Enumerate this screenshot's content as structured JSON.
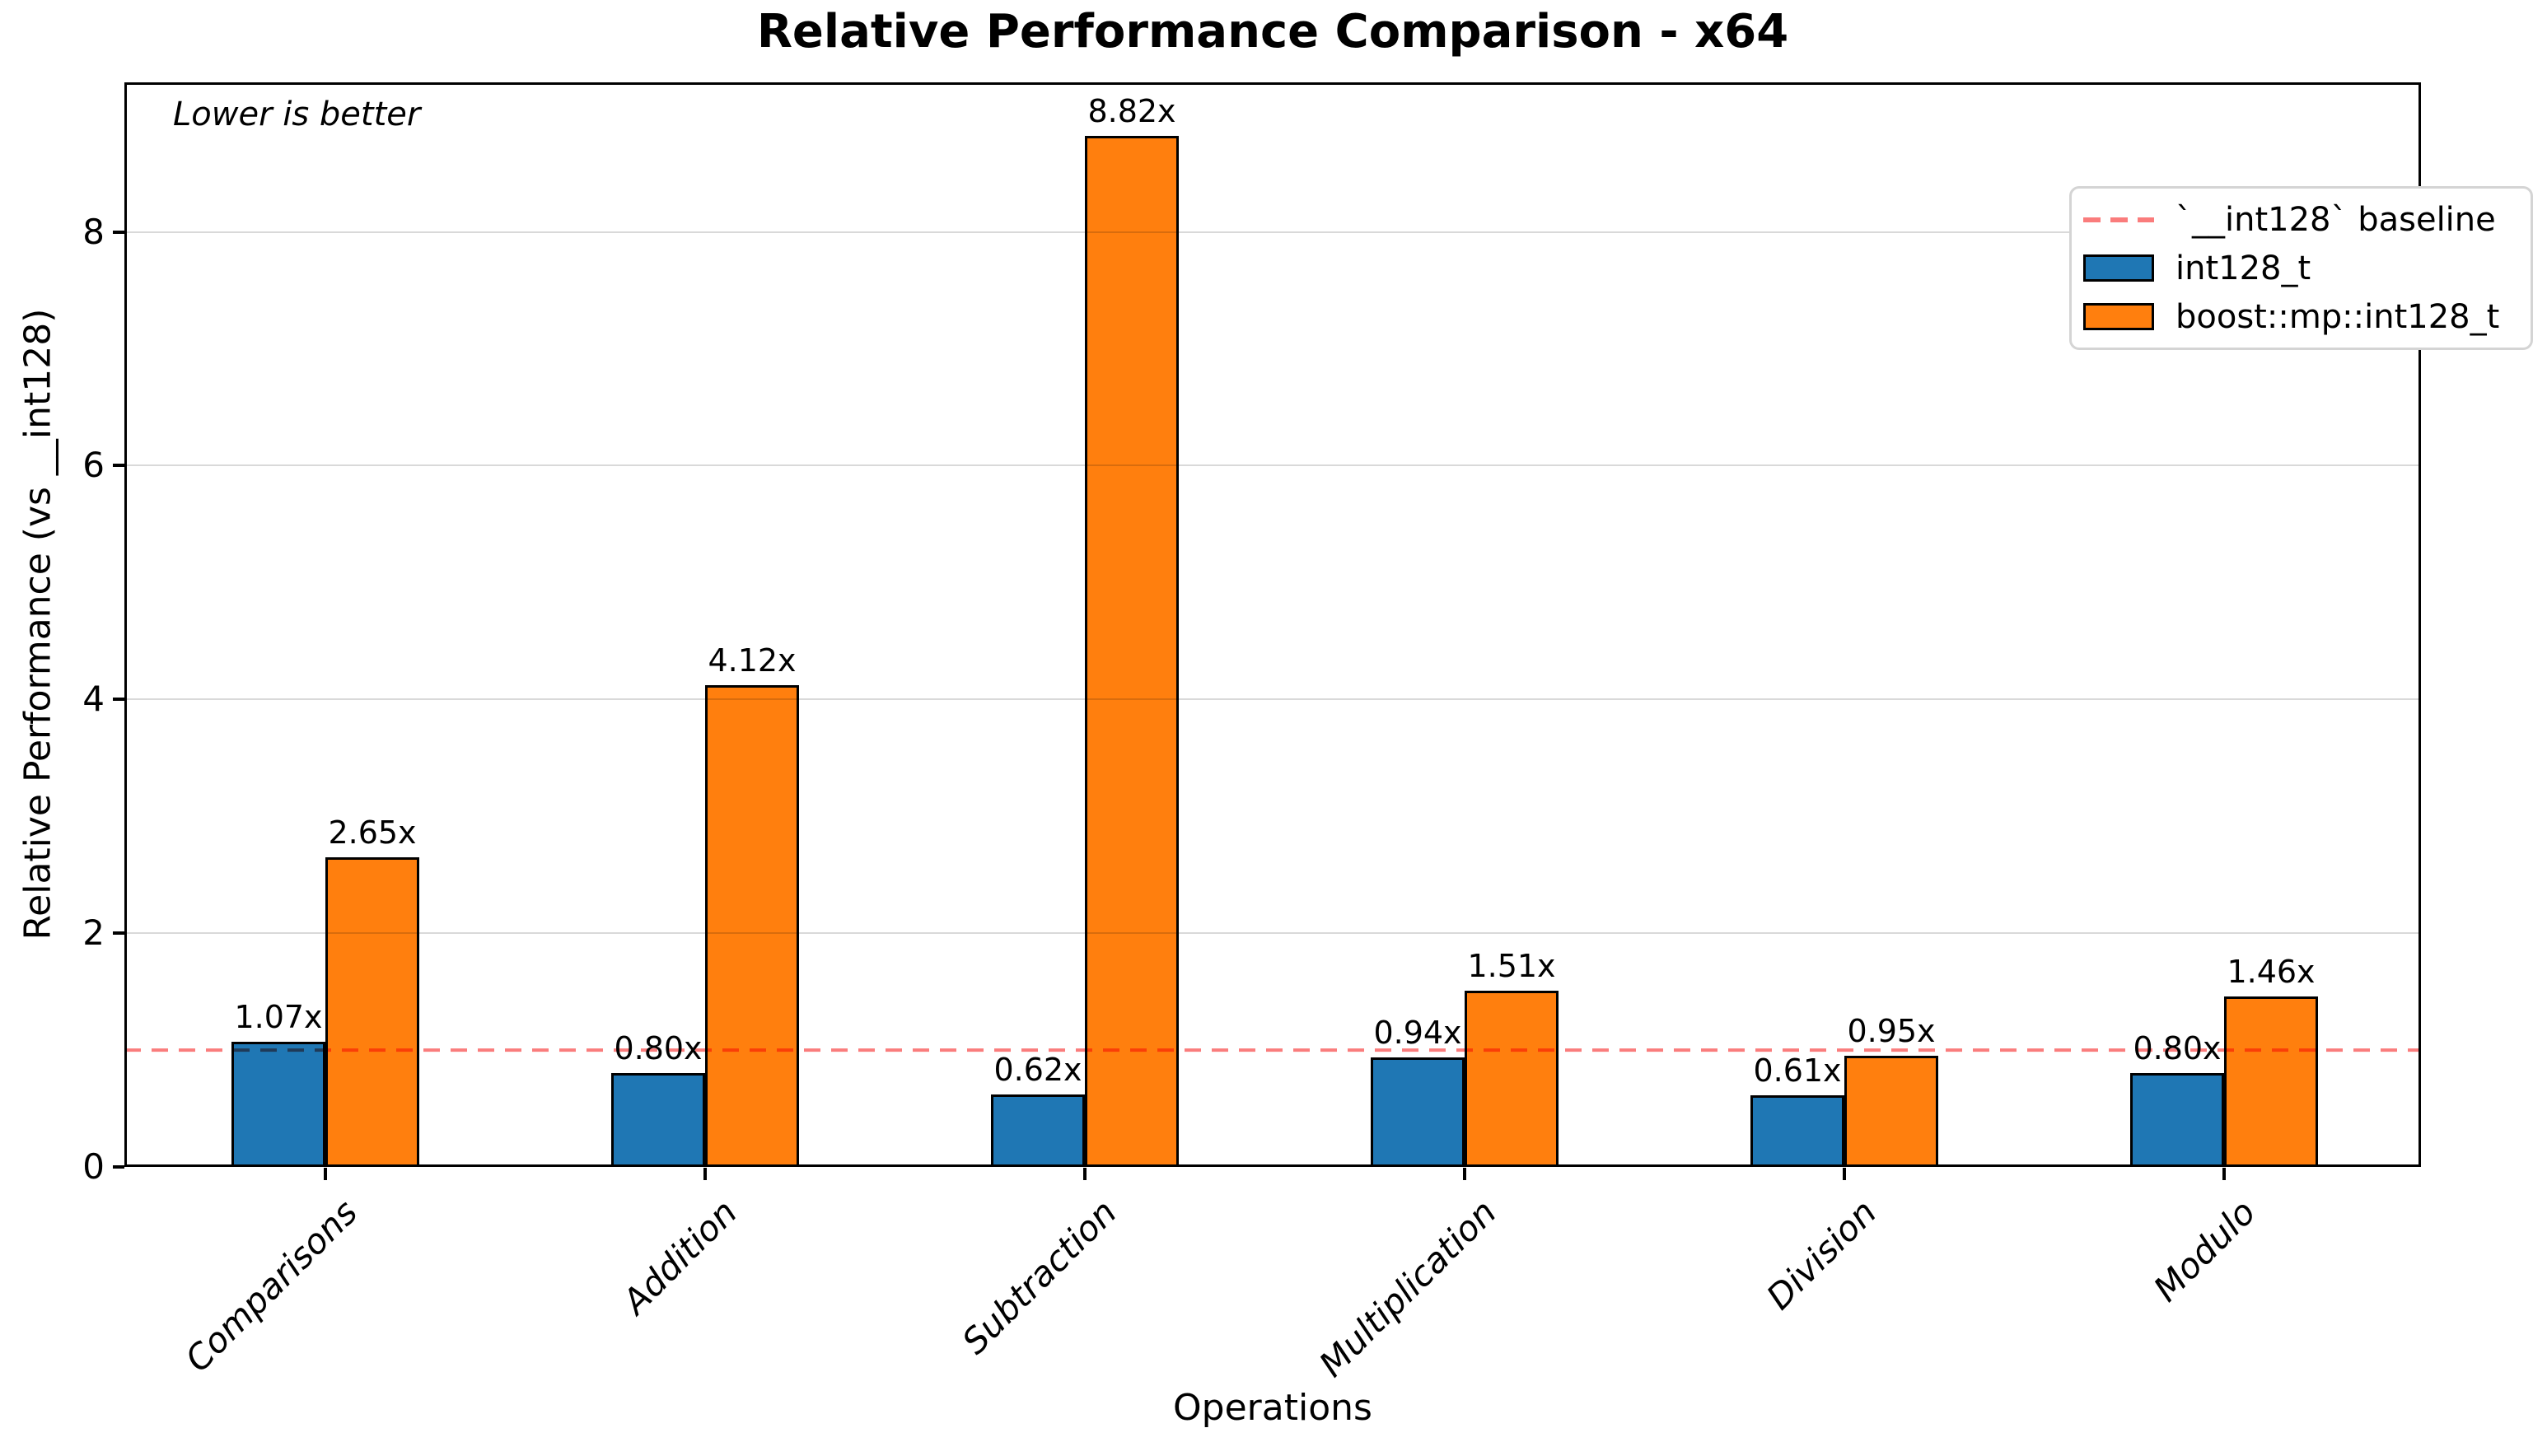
{
  "chart_data": {
    "type": "bar",
    "title": "Relative Performance Comparison - x64",
    "xlabel": "Operations",
    "ylabel": "Relative Performance (vs __int128)",
    "annotation": "Lower is better",
    "categories": [
      "Comparisons",
      "Addition",
      "Subtraction",
      "Multiplication",
      "Division",
      "Modulo"
    ],
    "series": [
      {
        "name": "int128_t",
        "color": "#1f77b4",
        "values": [
          1.07,
          0.8,
          0.62,
          0.94,
          0.61,
          0.8
        ]
      },
      {
        "name": "boost::mp::int128_t",
        "color": "#ff7f0e",
        "values": [
          2.65,
          4.12,
          8.82,
          1.51,
          0.95,
          1.46
        ]
      }
    ],
    "bar_labels": [
      [
        "1.07x",
        "0.80x",
        "0.62x",
        "0.94x",
        "0.61x",
        "0.80x"
      ],
      [
        "2.65x",
        "4.12x",
        "8.82x",
        "1.51x",
        "0.95x",
        "1.46x"
      ]
    ],
    "baseline": {
      "value": 1.0,
      "label": "`__int128` baseline",
      "color": "#fa7c7c"
    },
    "yticks": [
      0,
      2,
      4,
      6,
      8
    ],
    "ylim": [
      0,
      9.28
    ],
    "grid": "y",
    "legend_position": "upper right",
    "bar_edge_color": "#000000"
  }
}
